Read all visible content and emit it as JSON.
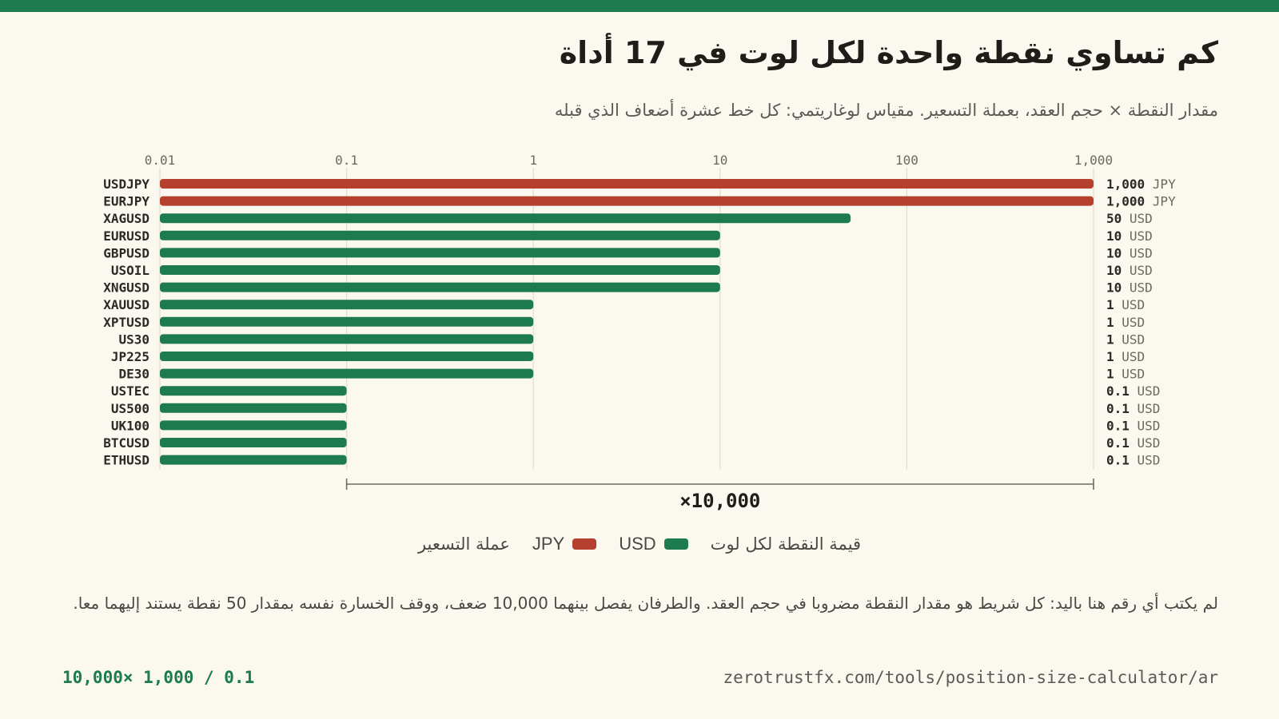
{
  "colors": {
    "usd": "#1e7a4f",
    "jpy": "#b5402e",
    "grid": "#e2dccb",
    "text": "#2b2a26",
    "muted": "#6b6860"
  },
  "header": {
    "title": "كم تساوي نقطة واحدة لكل لوت في 17 أداة",
    "subtitle": "مقدار النقطة × حجم العقد، بعملة التسعير. مقياس لوغاريتمي: كل خط عشرة أضعاف الذي قبله"
  },
  "chart_data": {
    "type": "bar",
    "orientation": "horizontal",
    "x_scale": "log",
    "xlim": [
      0.01,
      1000
    ],
    "x_ticks": [
      "0.01",
      "0.1",
      "1",
      "10",
      "100",
      "1,000"
    ],
    "x_tick_values": [
      0.01,
      0.1,
      1,
      10,
      100,
      1000
    ],
    "grid": true,
    "categories": [
      "USDJPY",
      "EURJPY",
      "XAGUSD",
      "EURUSD",
      "GBPUSD",
      "USOIL",
      "XNGUSD",
      "XAUUSD",
      "XPTUSD",
      "US30",
      "JP225",
      "DE30",
      "USTEC",
      "US500",
      "UK100",
      "BTCUSD",
      "ETHUSD"
    ],
    "values": [
      1000,
      1000,
      50,
      10,
      10,
      10,
      10,
      1,
      1,
      1,
      1,
      1,
      0.1,
      0.1,
      0.1,
      0.1,
      0.1
    ],
    "value_labels": [
      "1,000",
      "1,000",
      "50",
      "10",
      "10",
      "10",
      "10",
      "1",
      "1",
      "1",
      "1",
      "1",
      "0.1",
      "0.1",
      "0.1",
      "0.1",
      "0.1"
    ],
    "currencies": [
      "JPY",
      "JPY",
      "USD",
      "USD",
      "USD",
      "USD",
      "USD",
      "USD",
      "USD",
      "USD",
      "USD",
      "USD",
      "USD",
      "USD",
      "USD",
      "USD",
      "USD"
    ],
    "range_bracket": {
      "from": 0.1,
      "to": 1000,
      "label": "×10,000"
    }
  },
  "legend": {
    "title": "قيمة النقطة لكل لوت",
    "usd_label": "USD",
    "jpy_label": "JPY",
    "trailing": "عملة التسعير"
  },
  "note": "لم يكتب أي رقم هنا باليد: كل شريط هو مقدار النقطة مضروبا في حجم العقد. والطرفان يفصل بينهما 10,000 ضعف، ووقف الخسارة نفسه بمقدار 50 نقطة يستند إليهما معا.",
  "footer": {
    "formula": "10,000× 1,000 / 0.1",
    "url": "zerotrustfx.com/tools/position-size-calculator/ar"
  }
}
